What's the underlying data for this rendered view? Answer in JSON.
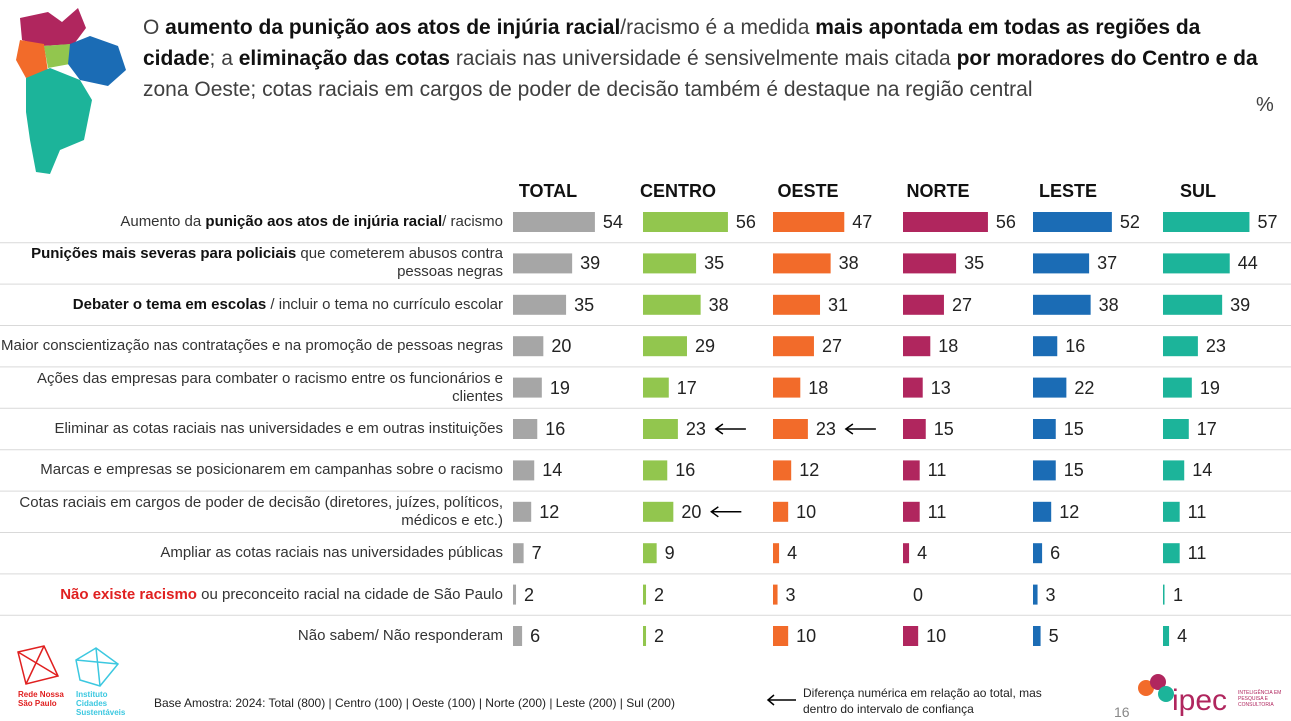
{
  "chart_data": {
    "type": "bar",
    "title": [
      {
        "text": "O "
      },
      {
        "text": "aumento da punição aos atos de injúria racial",
        "bold": true
      },
      {
        "text": "/racismo é a medida "
      },
      {
        "text": "mais apontada em todas as regiões da cidade",
        "bold": true
      },
      {
        "text": "; a "
      },
      {
        "text": "eliminação das cotas",
        "bold": true
      },
      {
        "text": " raciais nas universidade é sensivelmente mais citada "
      },
      {
        "text": "por moradores do Centro e da",
        "bold": true
      },
      {
        "text": " zona Oeste; cotas raciais em cargos de poder de decisão também é destaque na região central"
      }
    ],
    "unit": "%",
    "categories": [
      [
        {
          "text": "Aumento da "
        },
        {
          "text": "punição aos atos de injúria racial",
          "bold": true
        },
        {
          "text": "/ racismo"
        }
      ],
      [
        {
          "text": "Punições mais severas para policiais",
          "bold": true
        },
        {
          "text": " que cometerem abusos contra pessoas negras"
        }
      ],
      [
        {
          "text": "Debater o tema em escolas",
          "bold": true
        },
        {
          "text": " / incluir o tema no currículo escolar"
        }
      ],
      [
        {
          "text": "Maior conscientização nas contratações e na promoção de pessoas negras"
        }
      ],
      [
        {
          "text": "Ações das empresas para combater o racismo entre os funcionários e clientes"
        }
      ],
      [
        {
          "text": "Eliminar as cotas raciais nas universidades e em outras instituições"
        }
      ],
      [
        {
          "text": "Marcas e empresas se posicionarem em campanhas sobre o racismo"
        }
      ],
      [
        {
          "text": "Cotas raciais em cargos de poder de decisão (diretores, juízes, políticos, médicos e etc.)"
        }
      ],
      [
        {
          "text": "Ampliar as cotas raciais nas universidades públicas"
        }
      ],
      [
        {
          "text": "Não existe racismo",
          "bold": true,
          "color": "#e02020"
        },
        {
          "text": " ou preconceito racial na cidade de São Paulo"
        }
      ],
      [
        {
          "text": "Não sabem/ Não responderam"
        }
      ]
    ],
    "xlim": [
      0,
      60
    ],
    "series": [
      {
        "name": "TOTAL",
        "color": "#a6a6a6",
        "values": [
          54,
          39,
          35,
          20,
          19,
          16,
          14,
          12,
          7,
          2,
          6
        ]
      },
      {
        "name": "CENTRO",
        "color": "#92c64e",
        "values": [
          56,
          35,
          38,
          29,
          17,
          23,
          16,
          20,
          9,
          2,
          2
        ]
      },
      {
        "name": "OESTE",
        "color": "#f26b2a",
        "values": [
          47,
          38,
          31,
          27,
          18,
          23,
          12,
          10,
          4,
          3,
          10
        ]
      },
      {
        "name": "NORTE",
        "color": "#b0265e",
        "values": [
          56,
          35,
          27,
          18,
          13,
          15,
          11,
          11,
          4,
          0,
          10
        ]
      },
      {
        "name": "LESTE",
        "color": "#1b6cb5",
        "values": [
          52,
          37,
          38,
          16,
          22,
          15,
          15,
          12,
          6,
          3,
          5
        ]
      },
      {
        "name": "SUL",
        "color": "#1cb49a",
        "values": [
          57,
          44,
          39,
          23,
          19,
          17,
          14,
          11,
          11,
          1,
          4
        ]
      }
    ],
    "arrows": [
      {
        "series": 1,
        "category": 5
      },
      {
        "series": 2,
        "category": 5
      },
      {
        "series": 1,
        "category": 7
      }
    ],
    "arrow_note": "Diferença numérica em relação ao total, mas dentro do intervalo de confiança",
    "footnote": "Base Amostra: 2024: Total (800) | Centro (100) | Oeste (100) | Norte (200) | Leste (200) | Sul (200)",
    "page_number": "16",
    "logos": [
      "Rede Nossa São Paulo",
      "Instituto Cidades Sustentáveis",
      "ipec",
      "INTELIGÊNCIA EM PESQUISA E CONSULTORIA"
    ]
  }
}
